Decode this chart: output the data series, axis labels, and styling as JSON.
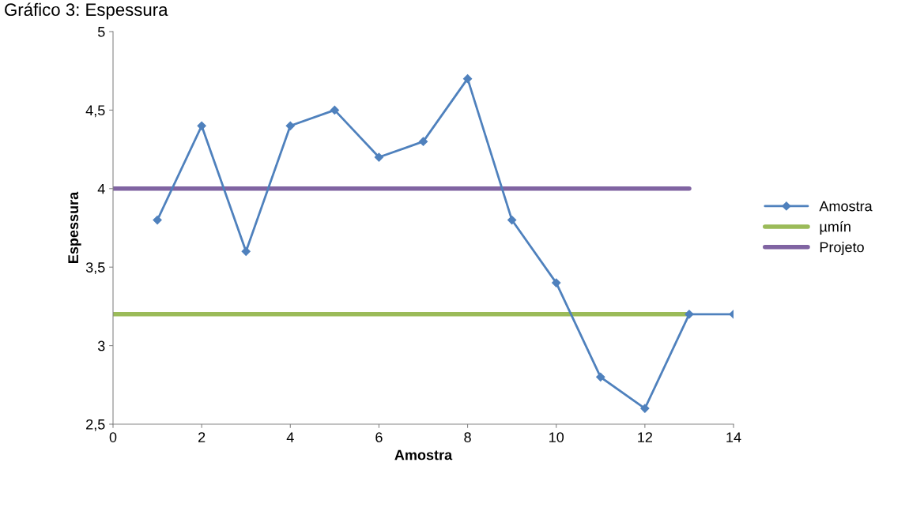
{
  "chart_data": {
    "type": "line",
    "title": "Gráfico 3: Espessura",
    "xlabel": "Amostra",
    "ylabel": "Espessura",
    "xlim": [
      0,
      14
    ],
    "xticks": [
      0,
      2,
      4,
      6,
      8,
      10,
      12,
      14
    ],
    "ylim": [
      2.5,
      5
    ],
    "yticks": [
      {
        "value": 2.5,
        "label": "2,5"
      },
      {
        "value": 3,
        "label": "3"
      },
      {
        "value": 3.5,
        "label": "3,5"
      },
      {
        "value": 4,
        "label": "4"
      },
      {
        "value": 4.5,
        "label": "4,5"
      },
      {
        "value": 5,
        "label": "5"
      }
    ],
    "grid": false,
    "legend": "right",
    "series": [
      {
        "name": "Amostra",
        "color": "#4f81bd",
        "marker": "diamond",
        "x": [
          1,
          2,
          3,
          4,
          5,
          6,
          7,
          8,
          9,
          10,
          11,
          12,
          13,
          14
        ],
        "values": [
          3.8,
          4.4,
          3.6,
          4.4,
          4.5,
          4.2,
          4.3,
          4.7,
          3.8,
          3.4,
          2.8,
          2.6,
          3.2,
          3.2
        ]
      },
      {
        "name": "µmín",
        "color": "#9bbb59",
        "marker": "none",
        "x": [
          0,
          13
        ],
        "values": [
          3.2,
          3.2
        ]
      },
      {
        "name": "Projeto",
        "color": "#8064a2",
        "marker": "none",
        "x": [
          0,
          13
        ],
        "values": [
          4,
          4
        ]
      }
    ]
  }
}
